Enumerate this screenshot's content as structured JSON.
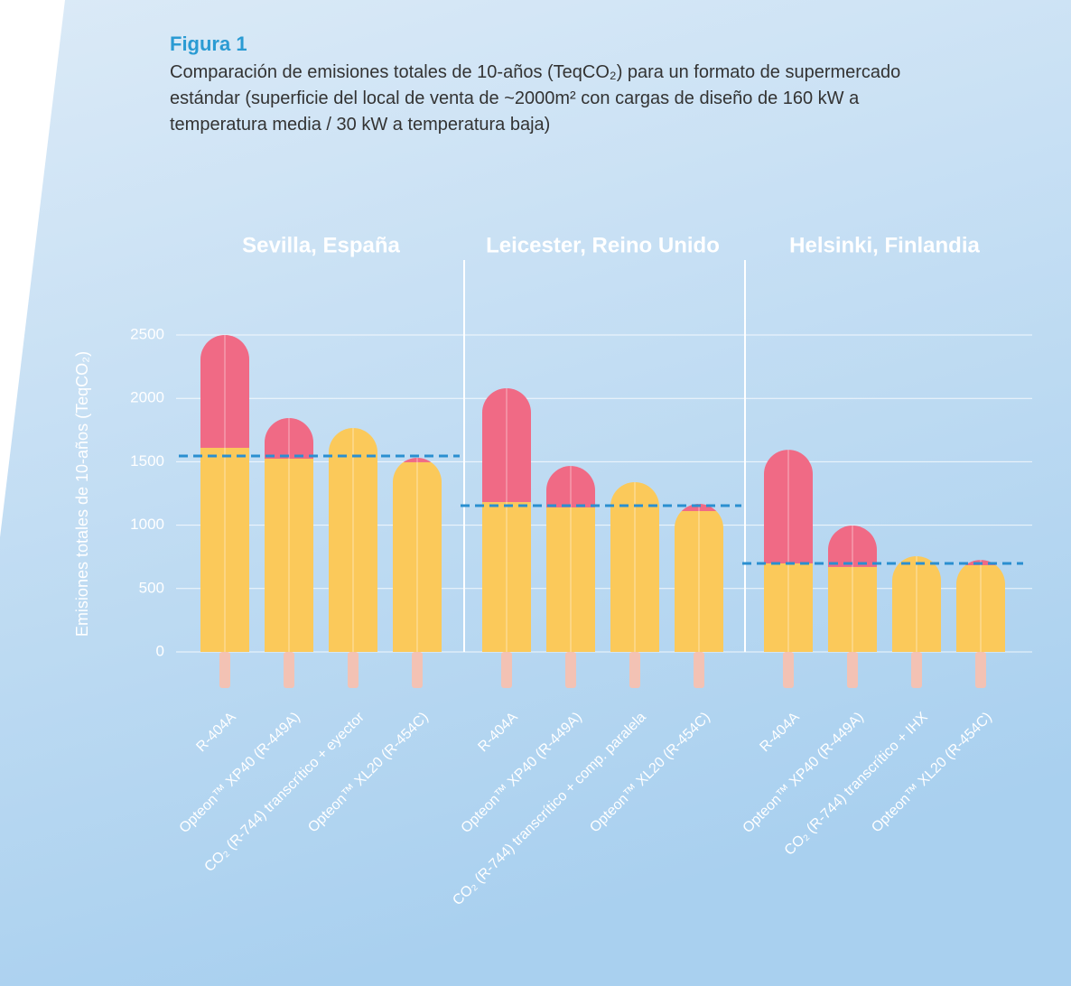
{
  "chart_data": {
    "type": "bar",
    "stacked": true,
    "title": "Figura 1",
    "subtitle": "Comparación de emisiones totales de 10-años (TeqCO₂) para un formato de supermercado estándar (superficie del local de venta de ~2000m² con cargas de diseño de 160 kW a temperatura media / 30 kW a temperatura baja)",
    "y_label": "Emisiones totales de 10-años (TeqCO₂)",
    "groups": [
      "Sevilla, España",
      "Leicester, Reino Unido",
      "Helsinki, Finlandia"
    ],
    "categories": [
      "R-404A",
      "Opteon™ XP40 (R-449A)",
      "CO₂ (R-744) transcrítico + eyector",
      "Opteon™ XL20 (R-454C)",
      "R-404A",
      "Opteon™ XP40 (R-449A)",
      "CO₂ (R-744) transcrítico + comp. paralela",
      "Opteon™ XL20 (R-454C)",
      "R-404A",
      "Opteon™ XP40 (R-449A)",
      "CO₂ (R-744) transcrítico + IHX",
      "Opteon™ XL20 (R-454C)"
    ],
    "series": [
      {
        "color": "#fbc95a",
        "values": [
          1610,
          1524,
          1766,
          1496,
          1182,
          1140,
          1339,
          1111,
          698,
          670,
          755,
          684
        ]
      },
      {
        "color": "#f06a85",
        "values": [
          890,
          321,
          0,
          35,
          898,
          327,
          0,
          57,
          897,
          327,
          0,
          42
        ]
      }
    ],
    "reference_lines": [
      1546,
      1154,
      698
    ],
    "reference_color": "#2a8fd0",
    "ylim": [
      0,
      2500
    ],
    "yticks": [
      0,
      500,
      1000,
      1500,
      2000,
      2500
    ],
    "grid": true
  }
}
